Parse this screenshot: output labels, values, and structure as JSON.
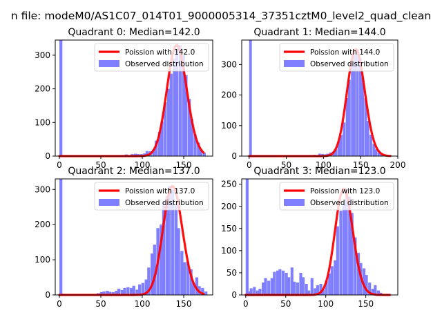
{
  "figure": {
    "suptitle": "n file: modeM0/AS1C07_014T01_9000005314_37351cztM0_level2_quad_clean"
  },
  "colors": {
    "hist": "#7f7fff",
    "poisson": "#ff0000",
    "axis": "#000000",
    "background": "#ffffff"
  },
  "chart_data": [
    {
      "type": "bar",
      "title": "Quadrant 0: Median=142.0",
      "median": 142,
      "legend": [
        "Poission with 142.0",
        "Observed distribution"
      ],
      "legend_position": "top-right",
      "xlim": [
        -5,
        185
      ],
      "ylim": [
        0,
        345
      ],
      "xticks": [
        0,
        50,
        100,
        150
      ],
      "yticks": [
        0,
        100,
        200,
        300
      ],
      "bin_width": 3.6,
      "bins_x": [
        0,
        72,
        79,
        83,
        86,
        90,
        93,
        97,
        101,
        104,
        108,
        112,
        115,
        119,
        122,
        126,
        130,
        133,
        137,
        140,
        144,
        148,
        151,
        155,
        158,
        162,
        166,
        169,
        173
      ],
      "bins_y": [
        345,
        2,
        5,
        3,
        6,
        7,
        6,
        6,
        8,
        15,
        14,
        20,
        46,
        72,
        103,
        160,
        200,
        245,
        290,
        320,
        330,
        300,
        240,
        170,
        110,
        65,
        40,
        20,
        10
      ]
    },
    {
      "type": "bar",
      "title": "Quadrant 1: Median=144.0",
      "median": 144,
      "legend": [
        "Poission with 144.0",
        "Observed distribution"
      ],
      "legend_position": "top-right",
      "xlim": [
        -10,
        200
      ],
      "ylim": [
        0,
        380
      ],
      "xticks": [
        0,
        50,
        100,
        150,
        200
      ],
      "yticks": [
        0,
        100,
        200,
        300
      ],
      "bin_width": 3.6,
      "bins_x": [
        0,
        72,
        79,
        86,
        93,
        97,
        101,
        104,
        108,
        112,
        115,
        119,
        122,
        126,
        130,
        133,
        137,
        140,
        144,
        148,
        151,
        155,
        158,
        162,
        166,
        169,
        173,
        176,
        180,
        184
      ],
      "bins_y": [
        380,
        2,
        3,
        4,
        8,
        7,
        6,
        8,
        12,
        16,
        22,
        48,
        70,
        110,
        190,
        250,
        300,
        330,
        350,
        320,
        255,
        190,
        115,
        70,
        40,
        22,
        12,
        6,
        3,
        2
      ]
    },
    {
      "type": "bar",
      "title": "Quadrant 2: Median=137.0",
      "median": 137,
      "legend": [
        "Poission with 137.0",
        "Observed distribution"
      ],
      "legend_position": "top-right",
      "xlim": [
        -5,
        185
      ],
      "ylim": [
        0,
        330
      ],
      "xticks": [
        0,
        50,
        100,
        150
      ],
      "yticks": [
        0,
        100,
        200,
        300
      ],
      "bin_width": 3.6,
      "bins_x": [
        0,
        45,
        49,
        52,
        56,
        59,
        63,
        67,
        70,
        74,
        77,
        81,
        85,
        88,
        92,
        95,
        99,
        103,
        106,
        110,
        113,
        117,
        121,
        124,
        128,
        131,
        135,
        139,
        142,
        146,
        149,
        153,
        157,
        160,
        164,
        167,
        171,
        175
      ],
      "bins_y": [
        330,
        5,
        8,
        10,
        12,
        9,
        8,
        12,
        18,
        14,
        20,
        22,
        20,
        26,
        15,
        30,
        34,
        44,
        78,
        118,
        143,
        190,
        200,
        265,
        282,
        310,
        300,
        255,
        190,
        125,
        93,
        95,
        73,
        35,
        50,
        25,
        20,
        10
      ]
    },
    {
      "type": "bar",
      "title": "Quadrant 3: Median=123.0",
      "median": 123,
      "legend": [
        "Poission with 123.0",
        "Observed distribution"
      ],
      "legend_position": "top-right",
      "xlim": [
        -5,
        190
      ],
      "ylim": [
        0,
        262
      ],
      "xticks": [
        0,
        50,
        100,
        150
      ],
      "yticks": [
        0,
        50,
        100,
        150,
        200,
        250
      ],
      "bin_width": 3.6,
      "bins_x": [
        0,
        2,
        5,
        9,
        13,
        16,
        20,
        23,
        27,
        31,
        34,
        38,
        41,
        45,
        49,
        52,
        56,
        59,
        63,
        67,
        70,
        74,
        77,
        81,
        85,
        88,
        92,
        95,
        99,
        103,
        106,
        110,
        113,
        117,
        121,
        124,
        128,
        131,
        135,
        139,
        142,
        146,
        149,
        153,
        157,
        160,
        164,
        167
      ],
      "bins_y": [
        262,
        8,
        15,
        18,
        10,
        14,
        28,
        38,
        32,
        38,
        52,
        55,
        58,
        55,
        50,
        40,
        62,
        30,
        28,
        50,
        40,
        25,
        10,
        38,
        15,
        22,
        25,
        12,
        32,
        48,
        65,
        78,
        155,
        190,
        205,
        240,
        222,
        185,
        130,
        95,
        72,
        60,
        45,
        28,
        14,
        22,
        10,
        5
      ]
    }
  ]
}
